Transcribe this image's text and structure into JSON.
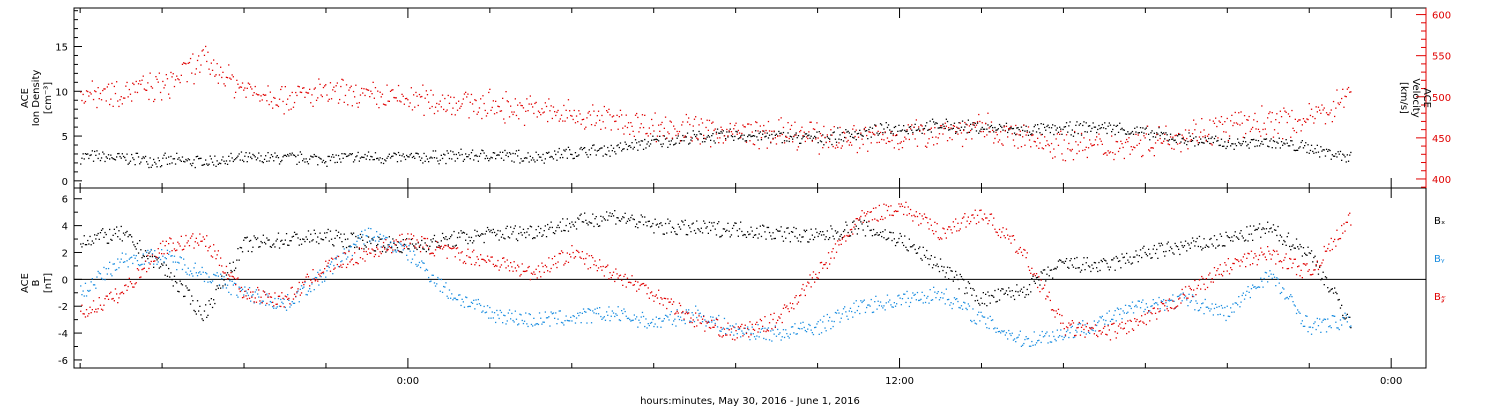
{
  "chart_data": [
    {
      "type": "scatter",
      "panel": "top",
      "y_left": {
        "label_lines": [
          "ACE",
          "Ion Density",
          "[cm⁻³]"
        ],
        "ticks": [
          0,
          5,
          10,
          15
        ],
        "ylim": [
          -0.8,
          19.3
        ]
      },
      "y_right": {
        "label_lines": [
          "ACE",
          "Velocity",
          "[km/s]"
        ],
        "ticks": [
          400,
          450,
          500,
          550,
          600
        ],
        "ylim": [
          389,
          608
        ],
        "color": "#e00000"
      },
      "series": [
        {
          "color": "#000000",
          "axis": "left",
          "x": [
            -8,
            -7,
            -6,
            -5,
            -4,
            -3,
            -2,
            -1,
            0,
            1,
            2,
            3,
            4,
            5,
            6,
            7,
            8,
            9,
            10,
            11,
            12,
            13,
            14,
            15,
            16,
            17,
            18,
            19,
            20,
            21,
            22,
            23
          ],
          "y": [
            2.8,
            2.6,
            2.3,
            2.2,
            2.5,
            2.6,
            2.5,
            2.7,
            2.6,
            2.8,
            2.9,
            2.7,
            3.2,
            3.6,
            4.4,
            4.9,
            5.2,
            5.0,
            4.8,
            5.4,
            5.9,
            6.2,
            6.0,
            5.7,
            5.8,
            6.1,
            5.4,
            4.7,
            4.2,
            4.4,
            3.7,
            2.7
          ]
        },
        {
          "color": "#e00000",
          "axis": "right",
          "x": [
            -8,
            -7,
            -6,
            -5,
            -4,
            -3,
            -2,
            -1,
            0,
            1,
            2,
            3,
            4,
            5,
            6,
            7,
            8,
            9,
            10,
            11,
            12,
            13,
            14,
            15,
            16,
            17,
            18,
            19,
            20,
            21,
            22,
            23
          ],
          "y": [
            505,
            508,
            512,
            545,
            510,
            500,
            505,
            500,
            498,
            495,
            490,
            485,
            478,
            472,
            465,
            460,
            457,
            455,
            452,
            450,
            452,
            460,
            462,
            450,
            442,
            440,
            447,
            455,
            465,
            470,
            472,
            505
          ]
        }
      ]
    },
    {
      "type": "scatter",
      "panel": "bottom",
      "y_left": {
        "label_lines": [
          "ACE",
          "B",
          "[nT]"
        ],
        "ticks": [
          -6,
          -4,
          -2,
          0,
          2,
          4,
          6
        ],
        "ylim": [
          -6.6,
          6.8
        ]
      },
      "legend": [
        "Bₓ",
        "Bᵧ",
        "B𝓏"
      ],
      "legend_position": "right",
      "series": [
        {
          "name": "Bₓ",
          "color": "#000000",
          "x": [
            -8,
            -7,
            -6,
            -5,
            -4,
            -3,
            -2,
            -1,
            0,
            1,
            2,
            3,
            4,
            5,
            6,
            7,
            8,
            9,
            10,
            11,
            12,
            13,
            14,
            15,
            16,
            17,
            18,
            19,
            20,
            21,
            22,
            23
          ],
          "y": [
            3.0,
            3.4,
            1.0,
            -2.6,
            2.6,
            3.0,
            3.2,
            2.8,
            2.5,
            3.0,
            3.4,
            3.6,
            4.2,
            4.8,
            4.0,
            3.8,
            3.8,
            3.5,
            3.2,
            4.0,
            3.0,
            1.0,
            -1.5,
            -0.8,
            1.2,
            1.0,
            2.0,
            2.5,
            3.0,
            3.8,
            2.0,
            -3.2
          ]
        },
        {
          "name": "Bᵧ",
          "color": "#1a8de0",
          "x": [
            -8,
            -7,
            -6,
            -5,
            -4,
            -3,
            -2,
            -1,
            0,
            1,
            2,
            3,
            4,
            5,
            6,
            7,
            8,
            9,
            10,
            11,
            12,
            13,
            14,
            15,
            16,
            17,
            18,
            19,
            20,
            21,
            22,
            23
          ],
          "y": [
            -1.0,
            1.5,
            1.8,
            0.5,
            -1.0,
            -1.8,
            0.5,
            3.5,
            2.0,
            -1.0,
            -2.5,
            -3.0,
            -2.8,
            -2.5,
            -3.2,
            -2.5,
            -3.8,
            -4.0,
            -3.5,
            -2.0,
            -1.5,
            -1.0,
            -3.0,
            -4.5,
            -4.0,
            -3.0,
            -1.8,
            -1.5,
            -2.5,
            0.5,
            -3.5,
            -3.0
          ]
        },
        {
          "name": "B𝓏",
          "color": "#e00000",
          "x": [
            -8,
            -7,
            -6,
            -5,
            -4,
            -3,
            -2,
            -1,
            0,
            1,
            2,
            3,
            4,
            5,
            6,
            7,
            8,
            9,
            10,
            11,
            12,
            13,
            14,
            15,
            16,
            17,
            18,
            19,
            20,
            21,
            22,
            23
          ],
          "y": [
            -2.5,
            -1.0,
            2.5,
            3.0,
            -1.0,
            -1.5,
            1.0,
            2.0,
            3.0,
            2.0,
            1.5,
            0.5,
            2.0,
            0.5,
            -1.0,
            -3.0,
            -4.0,
            -3.0,
            0.5,
            4.5,
            5.5,
            3.5,
            5.0,
            2.0,
            -3.5,
            -4.0,
            -3.0,
            -1.0,
            1.0,
            2.0,
            0.5,
            4.5
          ]
        }
      ],
      "zero_line": true
    }
  ],
  "x_axis": {
    "title": "hours:minutes, May 30, 2016 - June 1, 2016",
    "xlim": [
      -8.15,
      24.85
    ],
    "major_ticks": [
      {
        "value": 0,
        "label": "0:00"
      },
      {
        "value": 12,
        "label": "12:00"
      },
      {
        "value": 24,
        "label": "0:00"
      }
    ],
    "minor_every": 2
  }
}
